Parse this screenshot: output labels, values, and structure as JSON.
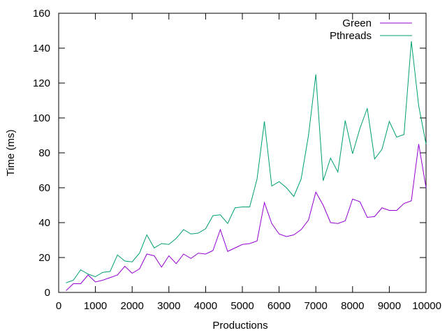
{
  "chart_data": {
    "type": "line",
    "xlabel": "Productions",
    "ylabel": "Time (ms)",
    "xlim": [
      0,
      10000
    ],
    "ylim": [
      0,
      160
    ],
    "xticks": [
      0,
      1000,
      2000,
      3000,
      4000,
      5000,
      6000,
      7000,
      8000,
      9000,
      10000
    ],
    "yticks": [
      0,
      20,
      40,
      60,
      80,
      100,
      120,
      140,
      160
    ],
    "grid": false,
    "legend_position": "top-right",
    "x": [
      200,
      400,
      600,
      800,
      1000,
      1200,
      1400,
      1600,
      1800,
      2000,
      2200,
      2400,
      2600,
      2800,
      3000,
      3200,
      3400,
      3600,
      3800,
      4000,
      4200,
      4400,
      4600,
      4800,
      5000,
      5200,
      5400,
      5600,
      5800,
      6000,
      6200,
      6400,
      6600,
      6800,
      7000,
      7200,
      7400,
      7600,
      7800,
      8000,
      8200,
      8400,
      8600,
      8800,
      9000,
      9200,
      9400,
      9600,
      9800,
      10000
    ],
    "series": [
      {
        "name": "Green",
        "color": "#9400d3",
        "values": [
          1,
          5,
          5,
          10,
          6,
          7,
          8.5,
          10,
          15,
          11,
          13.5,
          22,
          21,
          14.5,
          21,
          16.5,
          22,
          19.5,
          22.5,
          22,
          24,
          36,
          23.5,
          25.5,
          27.5,
          28,
          29.5,
          51.5,
          39.5,
          33.5,
          32,
          33,
          36,
          41.5,
          57.5,
          50,
          40,
          39.5,
          41,
          53.5,
          52,
          43,
          43.5,
          48.5,
          47,
          47,
          51,
          52.5,
          85,
          60
        ]
      },
      {
        "name": "Pthreads",
        "color": "#009e73",
        "values": [
          5.5,
          7,
          13,
          10.5,
          9,
          11.5,
          12,
          21.5,
          18,
          17.5,
          22.5,
          33,
          25.5,
          28,
          27.5,
          31,
          36,
          33.5,
          34,
          36.5,
          44,
          44.5,
          39.5,
          48.5,
          49,
          49,
          65,
          98,
          61,
          63.5,
          60,
          55,
          65,
          90,
          125,
          64,
          77,
          69,
          98.5,
          79.5,
          94,
          105.5,
          76.5,
          82,
          98,
          89,
          90.5,
          144,
          107,
          85
        ]
      }
    ]
  }
}
